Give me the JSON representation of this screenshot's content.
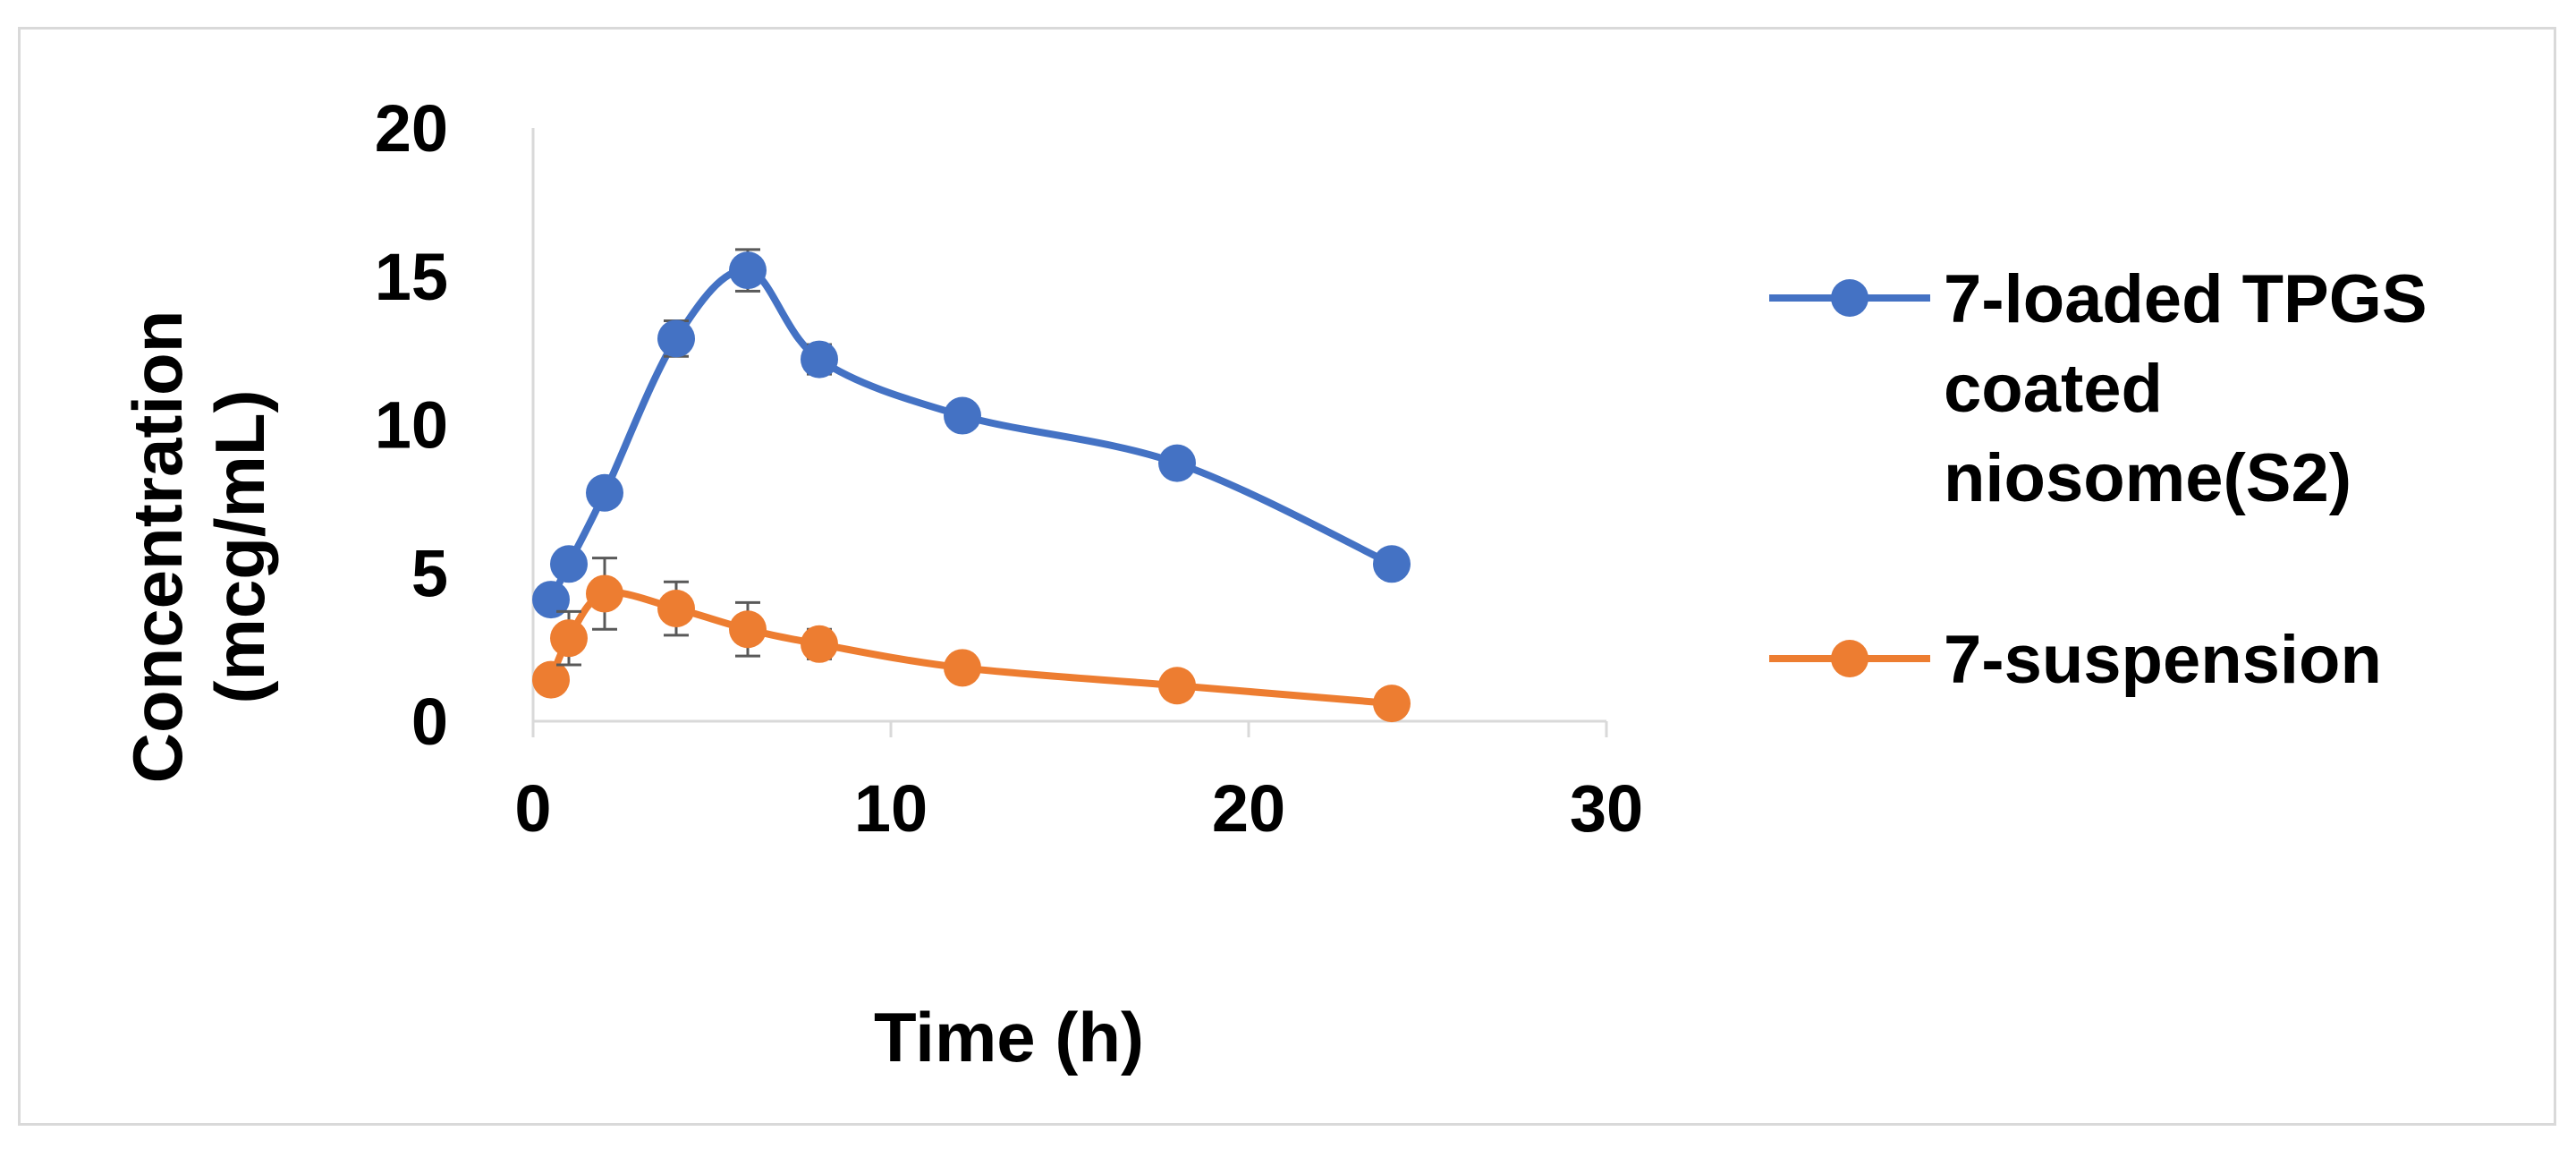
{
  "chart_data": {
    "type": "line",
    "title": "",
    "xlabel": "Time (h)",
    "ylabel_lines": [
      "Concentration",
      "(mcg/mL)"
    ],
    "xlim": [
      0,
      30
    ],
    "ylim": [
      0,
      20
    ],
    "x_ticks": [
      0,
      10,
      20,
      30
    ],
    "y_ticks": [
      0,
      5,
      10,
      15,
      20
    ],
    "grid": false,
    "legend_position": "right",
    "series": [
      {
        "name": "7-loaded TPGS coated niosome(S2)",
        "legend_lines": [
          "7-loaded TPGS",
          "coated",
          "niosome(S2)"
        ],
        "color": "#4472C4",
        "x": [
          0.5,
          1,
          2,
          4,
          6,
          8,
          12,
          18,
          24
        ],
        "y": [
          4.1,
          5.3,
          7.7,
          12.9,
          15.2,
          12.2,
          10.3,
          8.7,
          5.3
        ],
        "error": [
          0,
          0,
          0,
          0.6,
          0.7,
          0.5,
          0.3,
          0,
          0
        ]
      },
      {
        "name": "7-suspension",
        "legend_lines": [
          "7-suspension"
        ],
        "color": "#ED7D31",
        "x": [
          0.5,
          1,
          2,
          4,
          6,
          8,
          12,
          18,
          24
        ],
        "y": [
          1.4,
          2.8,
          4.3,
          3.8,
          3.1,
          2.6,
          1.8,
          1.2,
          0.6
        ],
        "error": [
          0.3,
          0.9,
          1.2,
          0.9,
          0.9,
          0.5,
          0.3,
          0,
          0
        ]
      }
    ]
  }
}
